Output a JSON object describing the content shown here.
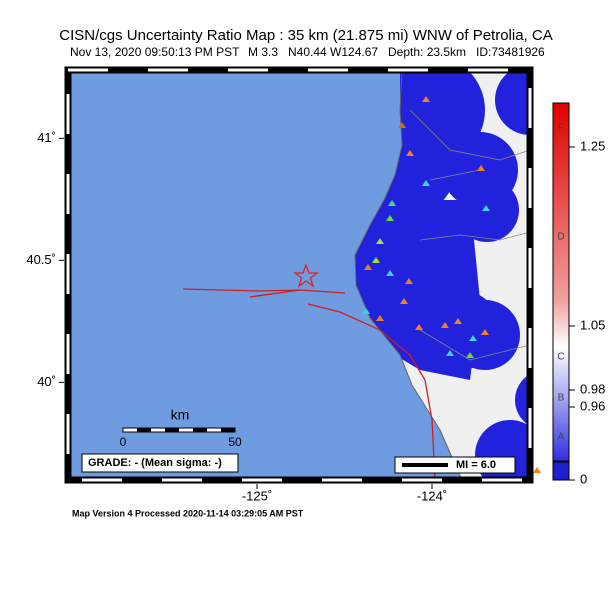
{
  "header": {
    "title": "CISN/cgs Uncertainty Ratio Map : 35 km (21.875 mi) WNW of Petrolia, CA",
    "subtitle": [
      "Nov 13, 2020 09:50:13 PM PST",
      "M 3.3",
      "N40.44 W124.67",
      "Depth: 23.5km",
      "ID:73481926"
    ]
  },
  "map": {
    "xlim": [
      -126.08,
      -123.44
    ],
    "ylim": [
      39.6,
      41.28
    ],
    "xticks": [
      {
        "value": -125,
        "label": "-125˚"
      },
      {
        "value": -124,
        "label": "-124˚"
      }
    ],
    "yticks": [
      {
        "value": 41,
        "label": "41˚"
      },
      {
        "value": 40.5,
        "label": "40.5˚"
      },
      {
        "value": 40,
        "label": "40˚"
      }
    ],
    "scale_bar": {
      "unit": "km",
      "labels": [
        "0",
        "50"
      ]
    },
    "grade": "GRADE: - (Mean sigma: -)",
    "legend": "MI = 6.0"
  },
  "colorbar": {
    "grades": [
      "F",
      "D",
      "C",
      "B",
      "A"
    ],
    "ticks": [
      1.25,
      1.05,
      0.98,
      0.96,
      0
    ]
  },
  "footer": "Map Version 4 Processed 2020-11-14 03:29:05 AM PST"
}
